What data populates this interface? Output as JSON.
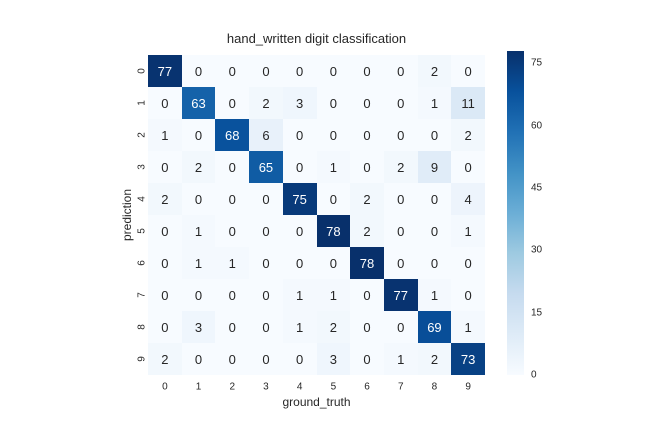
{
  "chart_data": {
    "type": "heatmap",
    "title": "hand_written digit classification",
    "xlabel": "ground_truth",
    "ylabel": "prediction",
    "x_tick_labels": [
      "0",
      "1",
      "2",
      "3",
      "4",
      "5",
      "6",
      "7",
      "8",
      "9"
    ],
    "y_tick_labels": [
      "0",
      "1",
      "2",
      "3",
      "4",
      "5",
      "6",
      "7",
      "8",
      "9"
    ],
    "matrix": [
      [
        77,
        0,
        0,
        0,
        0,
        0,
        0,
        0,
        2,
        0
      ],
      [
        0,
        63,
        0,
        2,
        3,
        0,
        0,
        0,
        1,
        11
      ],
      [
        1,
        0,
        68,
        6,
        0,
        0,
        0,
        0,
        0,
        2
      ],
      [
        0,
        2,
        0,
        65,
        0,
        1,
        0,
        2,
        9,
        0
      ],
      [
        2,
        0,
        0,
        0,
        75,
        0,
        2,
        0,
        0,
        4
      ],
      [
        0,
        1,
        0,
        0,
        0,
        78,
        2,
        0,
        0,
        1
      ],
      [
        0,
        1,
        1,
        0,
        0,
        0,
        78,
        0,
        0,
        0
      ],
      [
        0,
        0,
        0,
        0,
        1,
        1,
        0,
        77,
        1,
        0
      ],
      [
        0,
        3,
        0,
        0,
        1,
        2,
        0,
        0,
        69,
        1
      ],
      [
        2,
        0,
        0,
        0,
        0,
        3,
        0,
        1,
        2,
        73
      ]
    ],
    "vmin": 0,
    "vmax": 78,
    "colormap": "Blues",
    "colormap_stops": [
      "#f7fbff",
      "#deebf7",
      "#c6dbef",
      "#9ecae1",
      "#6baed6",
      "#4292c6",
      "#2171b5",
      "#08519c",
      "#08306b"
    ],
    "colorbar_ticks": [
      0,
      15,
      30,
      45,
      60,
      75
    ],
    "legend_position": "right",
    "grid": false,
    "colors": {
      "background": "#ffffff",
      "annotation_dark_text": "#262626",
      "annotation_light_text": "#ffffff",
      "tick_text": "#262626"
    }
  }
}
